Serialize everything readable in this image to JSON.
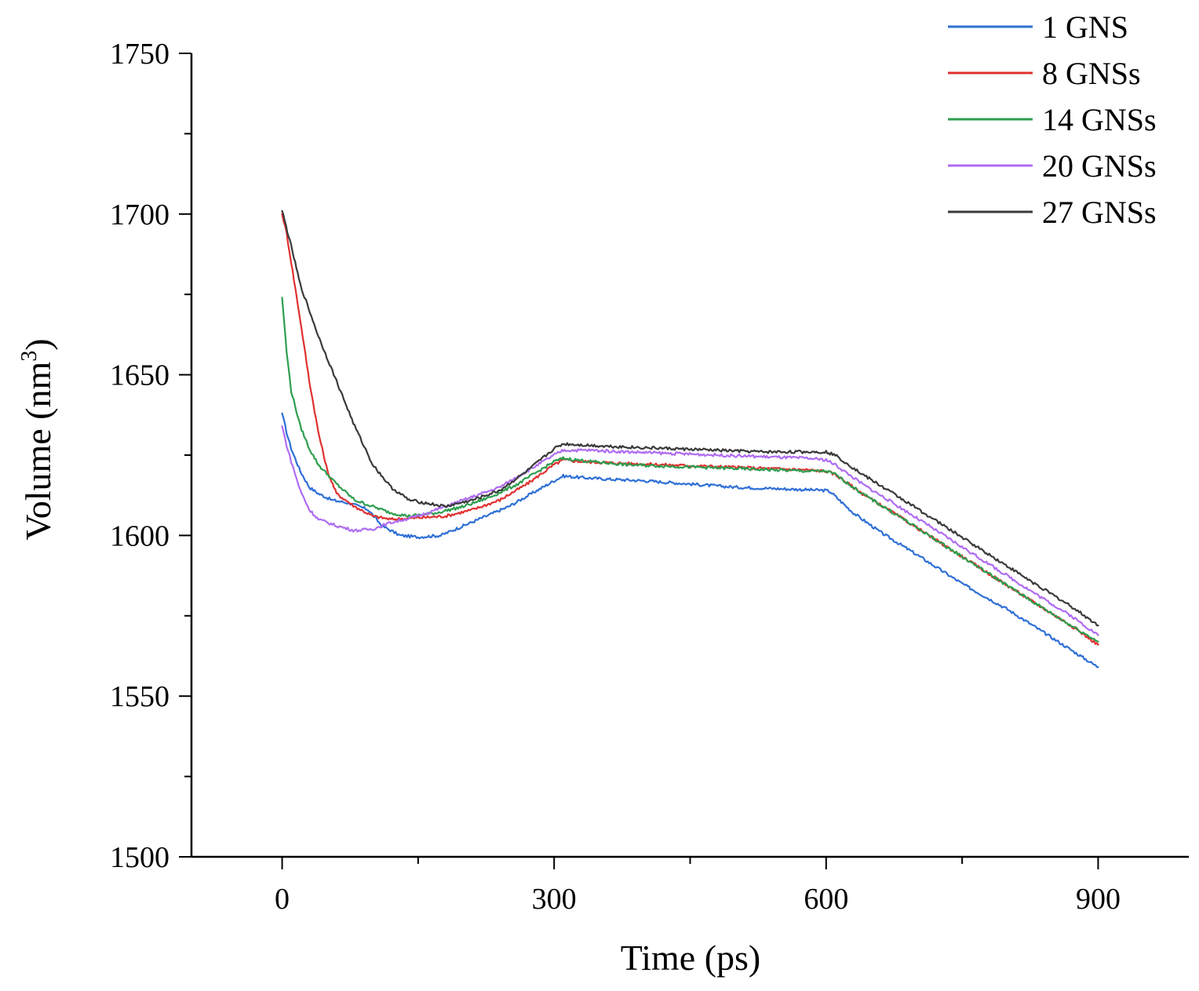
{
  "chart_data": {
    "type": "line",
    "xlabel": "Time (ps)",
    "ylabel": {
      "main": "Volume (nm",
      "sup": "3",
      "close": ")"
    },
    "xlim": [
      -100,
      1000
    ],
    "ylim": [
      1500,
      1750
    ],
    "xticks": [
      0,
      300,
      600,
      900
    ],
    "yticks": [
      1500,
      1550,
      1600,
      1650,
      1700,
      1750
    ],
    "legend_position": "top-right",
    "series": [
      {
        "name": "1 GNS",
        "color": "#2f6fd6",
        "points": [
          [
            0,
            1638
          ],
          [
            5,
            1632
          ],
          [
            10,
            1627
          ],
          [
            20,
            1620
          ],
          [
            30,
            1615
          ],
          [
            40,
            1613
          ],
          [
            55,
            1611
          ],
          [
            75,
            1610
          ],
          [
            95,
            1608
          ],
          [
            110,
            1603
          ],
          [
            130,
            1600
          ],
          [
            150,
            1599.5
          ],
          [
            175,
            1600
          ],
          [
            200,
            1603
          ],
          [
            225,
            1606
          ],
          [
            250,
            1609
          ],
          [
            275,
            1613
          ],
          [
            300,
            1617
          ],
          [
            310,
            1618.5
          ],
          [
            330,
            1618
          ],
          [
            360,
            1617.5
          ],
          [
            400,
            1617
          ],
          [
            450,
            1616
          ],
          [
            500,
            1615
          ],
          [
            550,
            1614.5
          ],
          [
            600,
            1614
          ],
          [
            605,
            1613.5
          ],
          [
            630,
            1607
          ],
          [
            660,
            1601
          ],
          [
            700,
            1594
          ],
          [
            750,
            1585
          ],
          [
            800,
            1577
          ],
          [
            850,
            1568
          ],
          [
            900,
            1559
          ]
        ]
      },
      {
        "name": "8 GNSs",
        "color": "#e03030",
        "points": [
          [
            0,
            1700
          ],
          [
            5,
            1694
          ],
          [
            10,
            1685
          ],
          [
            20,
            1667
          ],
          [
            30,
            1648
          ],
          [
            40,
            1632
          ],
          [
            50,
            1620
          ],
          [
            60,
            1613
          ],
          [
            80,
            1609
          ],
          [
            100,
            1606
          ],
          [
            120,
            1605
          ],
          [
            150,
            1605.5
          ],
          [
            180,
            1606
          ],
          [
            210,
            1608
          ],
          [
            240,
            1611
          ],
          [
            270,
            1616
          ],
          [
            300,
            1622
          ],
          [
            310,
            1623.5
          ],
          [
            330,
            1623
          ],
          [
            370,
            1622.5
          ],
          [
            420,
            1622
          ],
          [
            470,
            1621.5
          ],
          [
            520,
            1621
          ],
          [
            570,
            1620.5
          ],
          [
            600,
            1620
          ],
          [
            610,
            1619
          ],
          [
            640,
            1613
          ],
          [
            680,
            1606
          ],
          [
            730,
            1597
          ],
          [
            780,
            1588
          ],
          [
            830,
            1579
          ],
          [
            870,
            1572
          ],
          [
            900,
            1566
          ]
        ]
      },
      {
        "name": "14 GNSs",
        "color": "#2e9e4f",
        "points": [
          [
            0,
            1674
          ],
          [
            5,
            1657
          ],
          [
            10,
            1645
          ],
          [
            20,
            1634
          ],
          [
            30,
            1627
          ],
          [
            40,
            1622
          ],
          [
            60,
            1616
          ],
          [
            80,
            1611
          ],
          [
            100,
            1609
          ],
          [
            120,
            1607
          ],
          [
            140,
            1606
          ],
          [
            170,
            1607
          ],
          [
            200,
            1609
          ],
          [
            230,
            1612
          ],
          [
            260,
            1616
          ],
          [
            300,
            1623
          ],
          [
            310,
            1624
          ],
          [
            340,
            1623
          ],
          [
            380,
            1622
          ],
          [
            430,
            1621.5
          ],
          [
            480,
            1621
          ],
          [
            530,
            1620.5
          ],
          [
            580,
            1620
          ],
          [
            600,
            1620
          ],
          [
            610,
            1619
          ],
          [
            640,
            1613
          ],
          [
            680,
            1606
          ],
          [
            730,
            1597
          ],
          [
            780,
            1588
          ],
          [
            830,
            1579
          ],
          [
            870,
            1572
          ],
          [
            900,
            1567
          ]
        ]
      },
      {
        "name": "20 GNSs",
        "color": "#b06cf2",
        "points": [
          [
            0,
            1634
          ],
          [
            5,
            1628
          ],
          [
            10,
            1623
          ],
          [
            20,
            1614
          ],
          [
            30,
            1608
          ],
          [
            40,
            1605
          ],
          [
            60,
            1603
          ],
          [
            80,
            1601.5
          ],
          [
            100,
            1602
          ],
          [
            120,
            1604
          ],
          [
            150,
            1606
          ],
          [
            180,
            1609
          ],
          [
            210,
            1612
          ],
          [
            240,
            1615
          ],
          [
            270,
            1620
          ],
          [
            300,
            1625
          ],
          [
            310,
            1626.5
          ],
          [
            340,
            1626.5
          ],
          [
            380,
            1626
          ],
          [
            430,
            1625.5
          ],
          [
            480,
            1625
          ],
          [
            530,
            1624.5
          ],
          [
            580,
            1624
          ],
          [
            600,
            1623.5
          ],
          [
            610,
            1622
          ],
          [
            640,
            1616
          ],
          [
            680,
            1609
          ],
          [
            730,
            1600
          ],
          [
            780,
            1591
          ],
          [
            830,
            1582
          ],
          [
            870,
            1575
          ],
          [
            900,
            1569
          ]
        ]
      },
      {
        "name": "27 GNSs",
        "color": "#3a3a3a",
        "points": [
          [
            0,
            1701
          ],
          [
            10,
            1690
          ],
          [
            20,
            1678
          ],
          [
            40,
            1662
          ],
          [
            60,
            1648
          ],
          [
            80,
            1634
          ],
          [
            100,
            1622
          ],
          [
            120,
            1615
          ],
          [
            140,
            1611
          ],
          [
            160,
            1610
          ],
          [
            180,
            1609
          ],
          [
            210,
            1611
          ],
          [
            240,
            1614
          ],
          [
            270,
            1620
          ],
          [
            300,
            1627
          ],
          [
            310,
            1628.5
          ],
          [
            340,
            1628
          ],
          [
            380,
            1627.5
          ],
          [
            430,
            1627
          ],
          [
            480,
            1626.5
          ],
          [
            530,
            1626
          ],
          [
            580,
            1626
          ],
          [
            600,
            1626
          ],
          [
            610,
            1625
          ],
          [
            640,
            1619
          ],
          [
            680,
            1612
          ],
          [
            730,
            1603
          ],
          [
            780,
            1594
          ],
          [
            830,
            1585
          ],
          [
            870,
            1578
          ],
          [
            900,
            1572
          ]
        ]
      }
    ]
  }
}
